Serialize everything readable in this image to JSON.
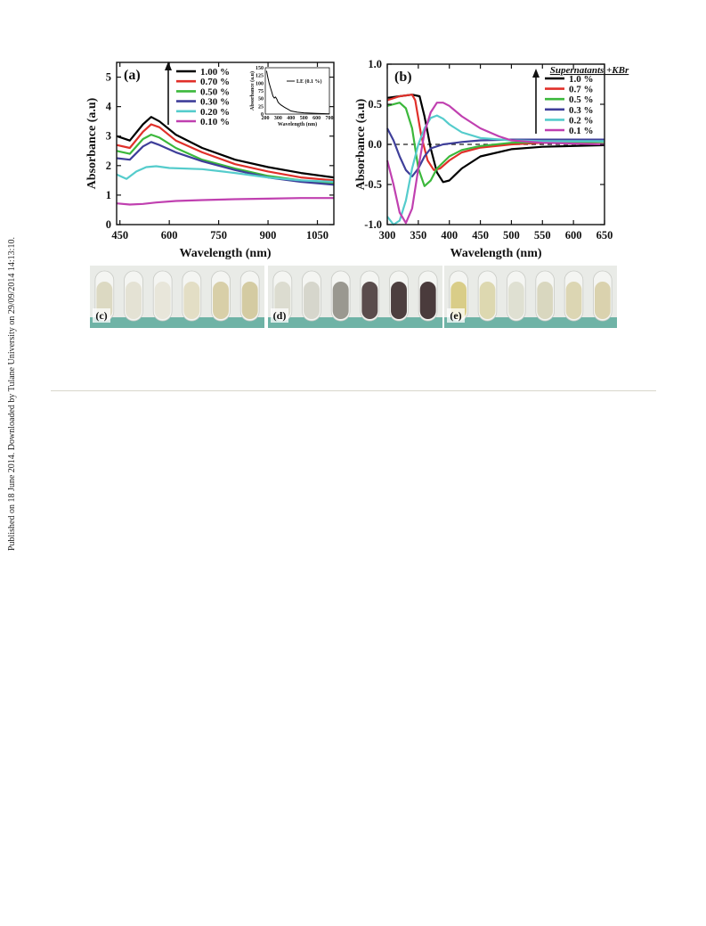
{
  "side_note": "Published on 18 June 2014. Downloaded by Tulane University on 29/09/2014 14:13:10.",
  "chart_data": [
    {
      "panel": "(a)",
      "type": "line",
      "xlabel": "Wavelength (nm)",
      "ylabel": "Absorbance (a.u)",
      "xlim": [
        440,
        1100
      ],
      "ylim": [
        0,
        5.5
      ],
      "xticks": [
        450,
        600,
        750,
        900,
        1050
      ],
      "yticks": [
        0,
        1,
        2,
        3,
        4,
        5
      ],
      "legend_position": "top-right",
      "series": [
        {
          "name": "1.00 %",
          "color": "#000000",
          "x": [
            440,
            480,
            520,
            545,
            570,
            620,
            700,
            800,
            900,
            1000,
            1100
          ],
          "y": [
            3.0,
            2.85,
            3.4,
            3.65,
            3.5,
            3.05,
            2.6,
            2.2,
            1.95,
            1.75,
            1.6
          ]
        },
        {
          "name": "0.70 %",
          "color": "#e0302a",
          "x": [
            440,
            480,
            520,
            545,
            570,
            620,
            700,
            800,
            900,
            1000,
            1100
          ],
          "y": [
            2.7,
            2.6,
            3.15,
            3.4,
            3.3,
            2.85,
            2.45,
            2.05,
            1.8,
            1.6,
            1.5
          ]
        },
        {
          "name": "0.50 %",
          "color": "#3cb83c",
          "x": [
            440,
            480,
            520,
            545,
            570,
            620,
            700,
            800,
            900,
            1000,
            1100
          ],
          "y": [
            2.5,
            2.4,
            2.9,
            3.05,
            2.95,
            2.6,
            2.2,
            1.9,
            1.65,
            1.5,
            1.4
          ]
        },
        {
          "name": "0.30 %",
          "color": "#3f3f9a",
          "x": [
            440,
            480,
            520,
            545,
            570,
            620,
            700,
            800,
            900,
            1000,
            1100
          ],
          "y": [
            2.25,
            2.2,
            2.65,
            2.8,
            2.7,
            2.45,
            2.15,
            1.85,
            1.6,
            1.45,
            1.35
          ]
        },
        {
          "name": "0.20 %",
          "color": "#55cccc",
          "x": [
            440,
            470,
            500,
            530,
            560,
            600,
            700,
            800,
            900,
            1000,
            1100
          ],
          "y": [
            1.7,
            1.55,
            1.8,
            1.95,
            1.98,
            1.92,
            1.88,
            1.75,
            1.6,
            1.5,
            1.45
          ]
        },
        {
          "name": "0.10 %",
          "color": "#c040b0",
          "x": [
            440,
            480,
            520,
            560,
            620,
            700,
            800,
            900,
            1000,
            1100
          ],
          "y": [
            0.72,
            0.68,
            0.7,
            0.75,
            0.8,
            0.83,
            0.86,
            0.88,
            0.9,
            0.9
          ]
        }
      ],
      "inset": {
        "legend": "LE (0.1 %)",
        "xlabel": "Wavelength (nm)",
        "ylabel": "Absorbance (a.u)",
        "xlim": [
          200,
          700
        ],
        "ylim": [
          0,
          150
        ],
        "xticks": [
          200,
          300,
          400,
          500,
          600,
          700
        ],
        "yticks": [
          0,
          25,
          50,
          75,
          100,
          125,
          150
        ],
        "series": [
          {
            "name": "LE (0.1 %)",
            "color": "#000000",
            "x": [
              210,
              220,
              230,
              240,
              250,
              260,
              270,
              280,
              290,
              300,
              320,
              350,
              380,
              400,
              450,
              500,
              600,
              700
            ],
            "y": [
              140,
              118,
              100,
              85,
              72,
              58,
              52,
              55,
              48,
              38,
              30,
              22,
              15,
              10,
              6,
              4,
              2,
              1
            ]
          }
        ]
      }
    },
    {
      "panel": "(b)",
      "type": "line",
      "xlabel": "Wavelength (nm)",
      "ylabel": "Absorbance (a.u)",
      "xlim": [
        300,
        650
      ],
      "ylim": [
        -1.0,
        1.0
      ],
      "xticks": [
        300,
        350,
        400,
        450,
        500,
        550,
        600,
        650
      ],
      "yticks": [
        -1.0,
        -0.5,
        0.0,
        0.5,
        1.0
      ],
      "yticklabels": [
        "-1.0",
        "-0.5",
        "0.0",
        "0.5",
        "1.0"
      ],
      "legend_title": "Supernatants +KBr",
      "legend_position": "top-right",
      "reference_line": {
        "y": 0.0,
        "style": "dashed"
      },
      "series": [
        {
          "name": "1.0 %",
          "color": "#000000",
          "x": [
            300,
            320,
            340,
            352,
            360,
            370,
            380,
            390,
            400,
            420,
            450,
            500,
            550,
            600,
            650
          ],
          "y": [
            0.58,
            0.6,
            0.62,
            0.6,
            0.35,
            -0.05,
            -0.35,
            -0.47,
            -0.45,
            -0.3,
            -0.15,
            -0.06,
            -0.03,
            -0.02,
            -0.01
          ]
        },
        {
          "name": "0.7 %",
          "color": "#e0302a",
          "x": [
            300,
            320,
            340,
            345,
            355,
            365,
            375,
            385,
            400,
            420,
            450,
            500,
            550,
            600,
            650
          ],
          "y": [
            0.55,
            0.6,
            0.62,
            0.55,
            0.1,
            -0.2,
            -0.32,
            -0.3,
            -0.2,
            -0.1,
            -0.04,
            0.0,
            0.02,
            0.02,
            0.03
          ]
        },
        {
          "name": "0.5 %",
          "color": "#3cb83c",
          "x": [
            300,
            320,
            330,
            340,
            350,
            360,
            370,
            380,
            400,
            420,
            450,
            500,
            550,
            600,
            650
          ],
          "y": [
            0.48,
            0.52,
            0.45,
            0.2,
            -0.3,
            -0.52,
            -0.45,
            -0.3,
            -0.15,
            -0.07,
            -0.02,
            0.02,
            0.03,
            0.03,
            0.03
          ]
        },
        {
          "name": "0.3 %",
          "color": "#3f3f9a",
          "x": [
            300,
            310,
            320,
            330,
            340,
            350,
            360,
            370,
            390,
            420,
            450,
            500,
            550,
            600,
            650
          ],
          "y": [
            0.2,
            0.05,
            -0.15,
            -0.32,
            -0.4,
            -0.3,
            -0.15,
            -0.05,
            0.0,
            0.03,
            0.05,
            0.06,
            0.06,
            0.06,
            0.06
          ]
        },
        {
          "name": "0.2 %",
          "color": "#55cccc",
          "x": [
            300,
            310,
            320,
            330,
            340,
            350,
            360,
            370,
            380,
            390,
            400,
            420,
            450,
            500,
            550,
            600,
            650
          ],
          "y": [
            -0.9,
            -1.0,
            -0.95,
            -0.7,
            -0.3,
            0.0,
            0.2,
            0.33,
            0.36,
            0.32,
            0.25,
            0.15,
            0.08,
            0.05,
            0.04,
            0.04,
            0.04
          ]
        },
        {
          "name": "0.1 %",
          "color": "#c040b0",
          "x": [
            300,
            310,
            320,
            330,
            340,
            350,
            360,
            370,
            380,
            390,
            400,
            420,
            450,
            480,
            500,
            550,
            600,
            650
          ],
          "y": [
            -0.2,
            -0.5,
            -0.85,
            -0.98,
            -0.8,
            -0.3,
            0.15,
            0.4,
            0.52,
            0.52,
            0.48,
            0.35,
            0.2,
            0.1,
            0.05,
            0.02,
            0.01,
            0.0
          ]
        }
      ]
    }
  ],
  "photos": [
    {
      "label": "(c)",
      "tubes": 6,
      "colors": [
        "#dcd9c2",
        "#e4e2d4",
        "#e8e6da",
        "#e3dec5",
        "#d8cfa8",
        "#d4cba2"
      ]
    },
    {
      "label": "(d)",
      "tubes": 6,
      "colors": [
        "#dcdcd0",
        "#d6d6cc",
        "#9a9890",
        "#5a4c4c",
        "#4d3f3f",
        "#4a3b3c"
      ]
    },
    {
      "label": "(e)",
      "tubes": 6,
      "colors": [
        "#d9cd88",
        "#ddd8b0",
        "#dfe0d2",
        "#d9d7bf",
        "#dcd6b3",
        "#dad2ae"
      ]
    }
  ]
}
